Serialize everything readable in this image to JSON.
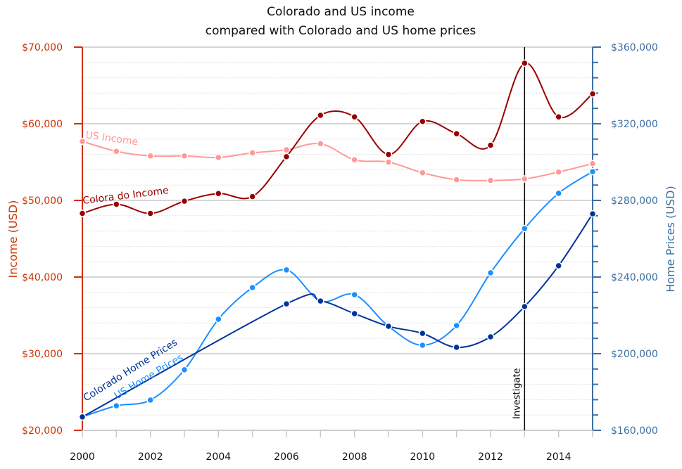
{
  "chart_data": {
    "type": "line",
    "title_line1": "Colorado and US income",
    "title_line2": "compared with Colorado and US home prices",
    "x": [
      2000,
      2001,
      2002,
      2003,
      2004,
      2005,
      2006,
      2007,
      2008,
      2009,
      2010,
      2011,
      2012,
      2013,
      2014,
      2015
    ],
    "x_tick_labels": [
      "2000",
      "2002",
      "2004",
      "2006",
      "2008",
      "2010",
      "2012",
      "2014"
    ],
    "y_left": {
      "label": "Income (USD)",
      "range": [
        20000,
        70000
      ],
      "tick_labels": [
        "$20,000",
        "$30,000",
        "$40,000",
        "$50,000",
        "$60,000",
        "$70,000"
      ],
      "color": "#cc3300"
    },
    "y_right": {
      "label": "Home Prices (USD)",
      "range": [
        160000,
        360000
      ],
      "tick_labels": [
        "$160,000",
        "$200,000",
        "$240,000",
        "$280,000",
        "$320,000",
        "$360,000"
      ],
      "color": "#3d6fa3"
    },
    "series": [
      {
        "name": "US Income",
        "axis": "left",
        "color": "#ff9999",
        "values": [
          57700,
          56400,
          55800,
          55800,
          55600,
          56200,
          56600,
          57400,
          55300,
          55000,
          53600,
          52700,
          52600,
          52800,
          53700,
          54800
        ]
      },
      {
        "name": "Colora do Income",
        "axis": "left",
        "color": "#990000",
        "values": [
          48300,
          49500,
          48300,
          49900,
          50900,
          50500,
          55700,
          61100,
          60900,
          56000,
          60300,
          58700,
          57200,
          67900,
          60900,
          63900
        ]
      },
      {
        "name": "US Home Prices",
        "axis": "right",
        "color": "#1e8fff",
        "values": [
          167000,
          172800,
          175800,
          191600,
          218000,
          234500,
          243700,
          227500,
          230800,
          214300,
          204400,
          214700,
          242200,
          265300,
          283700,
          295000
        ]
      },
      {
        "name": "Colorado Home Prices",
        "axis": "right",
        "color": "#003399",
        "values": [
          167000,
          null,
          null,
          null,
          null,
          null,
          226000,
          227500,
          220900,
          214300,
          210600,
          203300,
          208800,
          224600,
          245900,
          273000
        ]
      }
    ],
    "annotations": [
      {
        "text": "Investigate",
        "x": 2013
      }
    ],
    "grid": true,
    "legend": "inline-labels"
  }
}
